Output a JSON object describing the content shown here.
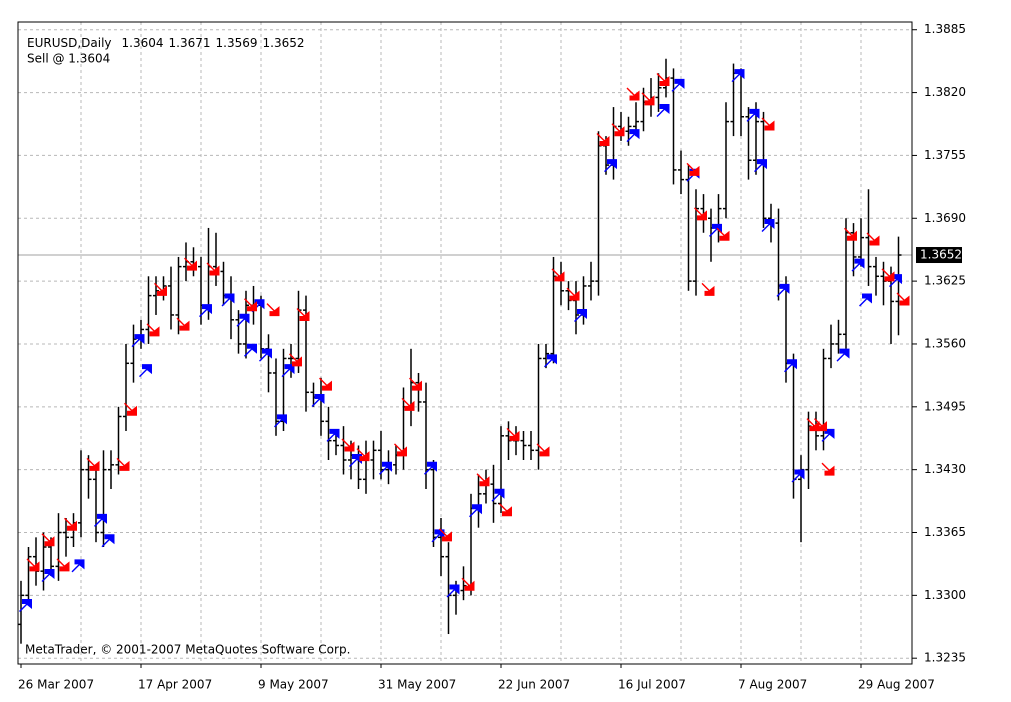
{
  "chart_data": {
    "type": "ohlc",
    "title": "EURUSD,Daily",
    "header_values": [
      1.3604,
      1.3671,
      1.3569,
      1.3652
    ],
    "subtitle": "Sell @ 1.3604",
    "footer": "MetaTrader, © 2001-2007 MetaQuotes Software Corp.",
    "categories": [
      "26 Mar 2007",
      null,
      null,
      null,
      null,
      null,
      null,
      null,
      null,
      null,
      null,
      null,
      null,
      null,
      null,
      null,
      "17 Apr 2007",
      null,
      null,
      null,
      null,
      null,
      null,
      null,
      null,
      null,
      null,
      null,
      null,
      null,
      null,
      null,
      "9 May 2007",
      null,
      null,
      null,
      null,
      null,
      null,
      null,
      null,
      null,
      null,
      null,
      null,
      null,
      null,
      null,
      "31 May 2007",
      null,
      null,
      null,
      null,
      null,
      null,
      null,
      null,
      null,
      null,
      null,
      null,
      null,
      null,
      null,
      "22 Jun 2007",
      null,
      null,
      null,
      null,
      null,
      null,
      null,
      null,
      null,
      null,
      null,
      null,
      null,
      null,
      null,
      "16 Jul 2007",
      null,
      null,
      null,
      null,
      null,
      null,
      null,
      null,
      null,
      null,
      null,
      null,
      null,
      null,
      null,
      "7 Aug 2007",
      null,
      null,
      null,
      null,
      null,
      null,
      null,
      null,
      null,
      null,
      null,
      null,
      null,
      null,
      null,
      "29 Aug 2007",
      null,
      null,
      null,
      null,
      null
    ],
    "bars": [
      [
        1.327,
        1.3315,
        1.325,
        1.33
      ],
      [
        1.33,
        1.335,
        1.329,
        1.334
      ],
      [
        1.334,
        1.336,
        1.331,
        1.3325
      ],
      [
        1.3325,
        1.3365,
        1.3305,
        1.335
      ],
      [
        1.335,
        1.336,
        1.332,
        1.333
      ],
      [
        1.333,
        1.3385,
        1.3315,
        1.3365
      ],
      [
        1.3365,
        1.338,
        1.334,
        1.336
      ],
      [
        1.336,
        1.3385,
        1.335,
        1.3375
      ],
      [
        1.3375,
        1.345,
        1.336,
        1.343
      ],
      [
        1.343,
        1.3445,
        1.34,
        1.342
      ],
      [
        1.342,
        1.343,
        1.3355,
        1.3365
      ],
      [
        1.3365,
        1.345,
        1.335,
        1.343
      ],
      [
        1.343,
        1.345,
        1.341,
        1.3435
      ],
      [
        1.3435,
        1.3495,
        1.3425,
        1.3485
      ],
      [
        1.3485,
        1.356,
        1.347,
        1.354
      ],
      [
        1.354,
        1.358,
        1.352,
        1.3565
      ],
      [
        1.3565,
        1.3585,
        1.3555,
        1.3575
      ],
      [
        1.3575,
        1.363,
        1.356,
        1.361
      ],
      [
        1.361,
        1.363,
        1.359,
        1.3615
      ],
      [
        1.3615,
        1.363,
        1.3605,
        1.362
      ],
      [
        1.362,
        1.364,
        1.3575,
        1.359
      ],
      [
        1.359,
        1.365,
        1.357,
        1.364
      ],
      [
        1.364,
        1.3665,
        1.3625,
        1.3645
      ],
      [
        1.3645,
        1.366,
        1.363,
        1.364
      ],
      [
        1.364,
        1.365,
        1.358,
        1.36
      ],
      [
        1.36,
        1.368,
        1.3585,
        1.364
      ],
      [
        1.364,
        1.3675,
        1.362,
        1.3635
      ],
      [
        1.3635,
        1.3645,
        1.36,
        1.361
      ],
      [
        1.361,
        1.363,
        1.3565,
        1.3585
      ],
      [
        1.3585,
        1.3595,
        1.355,
        1.356
      ],
      [
        1.356,
        1.3615,
        1.3545,
        1.36
      ],
      [
        1.36,
        1.362,
        1.358,
        1.36
      ],
      [
        1.36,
        1.361,
        1.3545,
        1.3555
      ],
      [
        1.3555,
        1.357,
        1.351,
        1.353
      ],
      [
        1.353,
        1.3545,
        1.3465,
        1.348
      ],
      [
        1.348,
        1.3555,
        1.347,
        1.3545
      ],
      [
        1.3545,
        1.356,
        1.3525,
        1.3545
      ],
      [
        1.3545,
        1.3615,
        1.353,
        1.3595
      ],
      [
        1.3595,
        1.361,
        1.349,
        1.351
      ],
      [
        1.351,
        1.352,
        1.3495,
        1.3505
      ],
      [
        1.3505,
        1.3525,
        1.3465,
        1.348
      ],
      [
        1.348,
        1.3495,
        1.344,
        1.346
      ],
      [
        1.346,
        1.347,
        1.3445,
        1.3455
      ],
      [
        1.3455,
        1.3475,
        1.3425,
        1.344
      ],
      [
        1.344,
        1.346,
        1.342,
        1.3445
      ],
      [
        1.3445,
        1.3455,
        1.341,
        1.342
      ],
      [
        1.342,
        1.346,
        1.3405,
        1.344
      ],
      [
        1.344,
        1.346,
        1.342,
        1.345
      ],
      [
        1.345,
        1.347,
        1.342,
        1.343
      ],
      [
        1.343,
        1.345,
        1.3415,
        1.3435
      ],
      [
        1.3435,
        1.3455,
        1.3425,
        1.3445
      ],
      [
        1.3445,
        1.3515,
        1.343,
        1.3495
      ],
      [
        1.3495,
        1.3555,
        1.3475,
        1.352
      ],
      [
        1.352,
        1.353,
        1.349,
        1.35
      ],
      [
        1.35,
        1.352,
        1.341,
        1.343
      ],
      [
        1.343,
        1.344,
        1.335,
        1.336
      ],
      [
        1.336,
        1.338,
        1.332,
        1.334
      ],
      [
        1.334,
        1.3355,
        1.326,
        1.33
      ],
      [
        1.33,
        1.3315,
        1.328,
        1.3305
      ],
      [
        1.3305,
        1.333,
        1.3295,
        1.331
      ],
      [
        1.331,
        1.3405,
        1.33,
        1.339
      ],
      [
        1.339,
        1.3425,
        1.337,
        1.3405
      ],
      [
        1.3405,
        1.343,
        1.3395,
        1.3415
      ],
      [
        1.3415,
        1.3435,
        1.3375,
        1.3395
      ],
      [
        1.3395,
        1.3475,
        1.3385,
        1.3465
      ],
      [
        1.3465,
        1.348,
        1.344,
        1.346
      ],
      [
        1.346,
        1.3475,
        1.3445,
        1.346
      ],
      [
        1.346,
        1.347,
        1.344,
        1.3455
      ],
      [
        1.3455,
        1.347,
        1.344,
        1.345
      ],
      [
        1.345,
        1.356,
        1.343,
        1.3545
      ],
      [
        1.3545,
        1.356,
        1.3535,
        1.355
      ],
      [
        1.355,
        1.365,
        1.354,
        1.363
      ],
      [
        1.363,
        1.3645,
        1.36,
        1.3615
      ],
      [
        1.3615,
        1.3625,
        1.3595,
        1.3605
      ],
      [
        1.3605,
        1.3625,
        1.357,
        1.359
      ],
      [
        1.359,
        1.363,
        1.358,
        1.362
      ],
      [
        1.362,
        1.3645,
        1.3605,
        1.3625
      ],
      [
        1.3625,
        1.378,
        1.361,
        1.3765
      ],
      [
        1.3765,
        1.3775,
        1.3735,
        1.3745
      ],
      [
        1.3745,
        1.3805,
        1.373,
        1.3785
      ],
      [
        1.3785,
        1.38,
        1.377,
        1.378
      ],
      [
        1.378,
        1.3795,
        1.3765,
        1.3785
      ],
      [
        1.3785,
        1.381,
        1.3775,
        1.379
      ],
      [
        1.379,
        1.3825,
        1.378,
        1.381
      ],
      [
        1.381,
        1.3835,
        1.3795,
        1.3815
      ],
      [
        1.3815,
        1.384,
        1.38,
        1.3825
      ],
      [
        1.3825,
        1.3855,
        1.3815,
        1.3835
      ],
      [
        1.3835,
        1.3845,
        1.3725,
        1.374
      ],
      [
        1.374,
        1.376,
        1.3715,
        1.373
      ],
      [
        1.373,
        1.3745,
        1.3615,
        1.3625
      ],
      [
        1.3625,
        1.372,
        1.361,
        1.37
      ],
      [
        1.37,
        1.3715,
        1.3675,
        1.369
      ],
      [
        1.369,
        1.37,
        1.3645,
        1.368
      ],
      [
        1.368,
        1.3715,
        1.3665,
        1.37
      ],
      [
        1.37,
        1.381,
        1.369,
        1.379
      ],
      [
        1.379,
        1.385,
        1.3775,
        1.384
      ],
      [
        1.384,
        1.3845,
        1.3775,
        1.3795
      ],
      [
        1.3795,
        1.3805,
        1.373,
        1.375
      ],
      [
        1.375,
        1.381,
        1.3735,
        1.379
      ],
      [
        1.379,
        1.38,
        1.368,
        1.369
      ],
      [
        1.369,
        1.3705,
        1.3665,
        1.3685
      ],
      [
        1.3685,
        1.37,
        1.3605,
        1.362
      ],
      [
        1.362,
        1.363,
        1.352,
        1.354
      ],
      [
        1.354,
        1.355,
        1.34,
        1.342
      ],
      [
        1.342,
        1.3445,
        1.3355,
        1.343
      ],
      [
        1.343,
        1.349,
        1.341,
        1.3475
      ],
      [
        1.3475,
        1.349,
        1.345,
        1.3465
      ],
      [
        1.3465,
        1.3555,
        1.345,
        1.3545
      ],
      [
        1.3545,
        1.358,
        1.3535,
        1.356
      ],
      [
        1.356,
        1.3585,
        1.355,
        1.357
      ],
      [
        1.357,
        1.369,
        1.3555,
        1.3675
      ],
      [
        1.3675,
        1.3685,
        1.363,
        1.365
      ],
      [
        1.365,
        1.369,
        1.364,
        1.367
      ],
      [
        1.367,
        1.372,
        1.362,
        1.364
      ],
      [
        1.364,
        1.365,
        1.361,
        1.363
      ],
      [
        1.363,
        1.3645,
        1.36,
        1.3625
      ],
      [
        1.3625,
        1.364,
        1.356,
        1.3604
      ],
      [
        1.3604,
        1.3671,
        1.3569,
        1.3652
      ]
    ],
    "color": "#000000",
    "buy": {
      "color": "#0000ff",
      "x": [
        0,
        3,
        7,
        10,
        11,
        15,
        16,
        24,
        27,
        29,
        30,
        31,
        32,
        34,
        35,
        39,
        41,
        44,
        48,
        54,
        55,
        57,
        60,
        63,
        70,
        74,
        78,
        81,
        85,
        87,
        89,
        92,
        95,
        97,
        98,
        99,
        101,
        102,
        103,
        107,
        109,
        111,
        112,
        116
      ],
      "values": [
        1.329,
        1.3321,
        1.3331,
        1.3378,
        1.3357,
        1.3564,
        1.3533,
        1.3595,
        1.3606,
        1.3585,
        1.3554,
        1.36,
        1.3549,
        1.3481,
        1.3533,
        1.3502,
        1.3466,
        1.344,
        1.3432,
        1.3432,
        1.3362,
        1.3305,
        1.3388,
        1.3404,
        1.3543,
        1.359,
        1.3745,
        1.3776,
        1.3802,
        1.3828,
        1.3735,
        1.3678,
        1.3838,
        1.3797,
        1.3745,
        1.3683,
        1.3616,
        1.3538,
        1.3424,
        1.3466,
        1.3549,
        1.3642,
        1.3606,
        1.3626
      ]
    },
    "sell": {
      "color": "#ff0000",
      "x": [
        1,
        3,
        5,
        6,
        9,
        13,
        14,
        17,
        18,
        21,
        22,
        25,
        30,
        33,
        36,
        37,
        40,
        43,
        45,
        50,
        51,
        52,
        56,
        59,
        61,
        64,
        65,
        69,
        71,
        73,
        77,
        79,
        81,
        83,
        85,
        89,
        90,
        91,
        93,
        99,
        105,
        106,
        107,
        110,
        113,
        115,
        117
      ],
      "values": [
        1.3331,
        1.3357,
        1.3331,
        1.3373,
        1.3435,
        1.3435,
        1.3492,
        1.3574,
        1.3616,
        1.358,
        1.3642,
        1.3637,
        1.36,
        1.3595,
        1.3543,
        1.359,
        1.3518,
        1.3455,
        1.3445,
        1.345,
        1.3497,
        1.3518,
        1.3362,
        1.3311,
        1.3419,
        1.3388,
        1.3466,
        1.345,
        1.3631,
        1.3611,
        1.3771,
        1.3781,
        1.3818,
        1.3813,
        1.3833,
        1.374,
        1.3694,
        1.3616,
        1.3673,
        1.3787,
        1.3476,
        1.3476,
        1.343,
        1.3673,
        1.3668,
        1.3631,
        1.3606
      ]
    },
    "current_price": 1.3652,
    "ylim": [
      1.3229,
      1.3893
    ],
    "yticks": [
      1.3885,
      {
        "value": 1.382,
        "label": "1.3820"
      },
      1.3755,
      {
        "value": 1.369,
        "label": "1.3690"
      },
      1.3625,
      {
        "value": 1.356,
        "label": "1.3560"
      },
      1.3495,
      {
        "value": 1.343,
        "label": "1.3430"
      },
      1.3365,
      {
        "value": 1.33,
        "label": "1.3300"
      },
      1.3235
    ],
    "grid": true
  }
}
